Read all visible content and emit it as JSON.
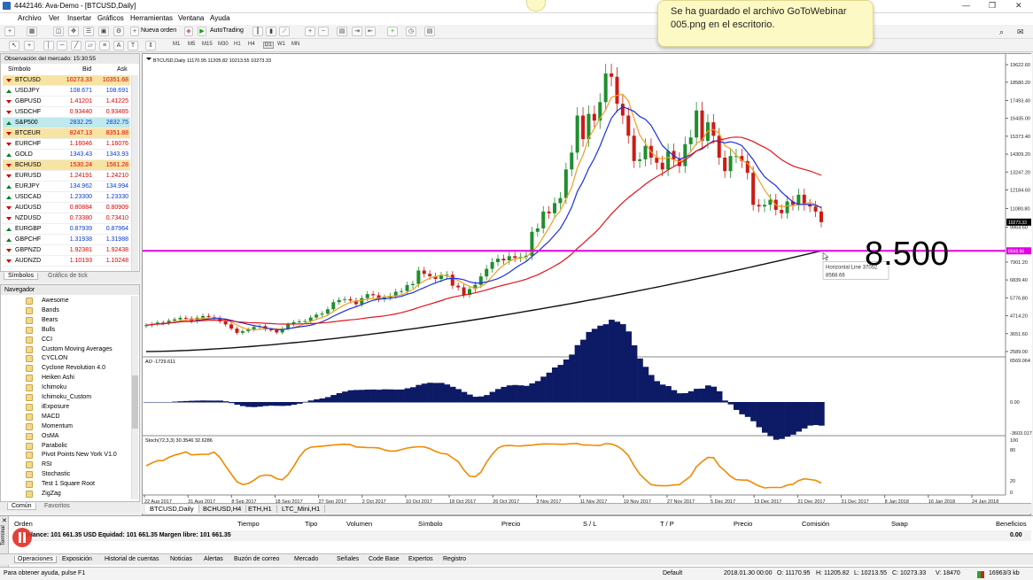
{
  "window": {
    "title": "4442146: Ava-Demo - [BTCUSD,Daily]",
    "controls": [
      "—",
      "❐",
      "✕"
    ]
  },
  "menu": [
    "Archivo",
    "Ver",
    "Insertar",
    "Gráficos",
    "Herramientas",
    "Ventana",
    "Ayuda"
  ],
  "toolbar": {
    "new_order": "Nueva orden",
    "autotrading": "AutoTrading",
    "timeframes": [
      "M1",
      "M5",
      "M15",
      "M30",
      "H1",
      "H4",
      "D1",
      "W1",
      "MN"
    ]
  },
  "notification": {
    "text": "Se ha guardado el archivo GoToWebinar 005.png en el escritorio."
  },
  "market_watch": {
    "header": "Observación del mercado: 15:30:55",
    "columns": [
      "Símbolo",
      "Bid",
      "Ask"
    ],
    "rows": [
      {
        "symbol": "BTCUSD",
        "bid": "10273.33",
        "ask": "10351.68",
        "dir": "dn",
        "hl": "#f7e3a2"
      },
      {
        "symbol": "USDJPY",
        "bid": "108.671",
        "ask": "108.691",
        "dir": "up",
        "hl": ""
      },
      {
        "symbol": "GBPUSD",
        "bid": "1.41201",
        "ask": "1.41225",
        "dir": "dn",
        "hl": ""
      },
      {
        "symbol": "USDCHF",
        "bid": "0.93440",
        "ask": "0.93465",
        "dir": "dn",
        "hl": ""
      },
      {
        "symbol": "S&P500",
        "bid": "2832.25",
        "ask": "2832.75",
        "dir": "up",
        "hl": "#bfe9ec"
      },
      {
        "symbol": "BTCEUR",
        "bid": "8247.13",
        "ask": "8351.88",
        "dir": "dn",
        "hl": "#f7e3a2"
      },
      {
        "symbol": "EURCHF",
        "bid": "1.16046",
        "ask": "1.16076",
        "dir": "dn",
        "hl": ""
      },
      {
        "symbol": "GOLD",
        "bid": "1343.43",
        "ask": "1343.93",
        "dir": "up",
        "hl": ""
      },
      {
        "symbol": "BCHUSD",
        "bid": "1530.24",
        "ask": "1561.28",
        "dir": "dn",
        "hl": "#f7e3a2"
      },
      {
        "symbol": "EURUSD",
        "bid": "1.24191",
        "ask": "1.24210",
        "dir": "dn",
        "hl": ""
      },
      {
        "symbol": "EURJPY",
        "bid": "134.962",
        "ask": "134.994",
        "dir": "up",
        "hl": ""
      },
      {
        "symbol": "USDCAD",
        "bid": "1.23300",
        "ask": "1.23330",
        "dir": "up",
        "hl": ""
      },
      {
        "symbol": "AUDUSD",
        "bid": "0.80884",
        "ask": "0.80909",
        "dir": "dn",
        "hl": ""
      },
      {
        "symbol": "NZDUSD",
        "bid": "0.73380",
        "ask": "0.73410",
        "dir": "dn",
        "hl": ""
      },
      {
        "symbol": "EURGBP",
        "bid": "0.87939",
        "ask": "0.87964",
        "dir": "up",
        "hl": ""
      },
      {
        "symbol": "GBPCHF",
        "bid": "1.31938",
        "ask": "1.31988",
        "dir": "up",
        "hl": ""
      },
      {
        "symbol": "GBPNZD",
        "bid": "1.92381",
        "ask": "1.92438",
        "dir": "dn",
        "hl": ""
      },
      {
        "symbol": "AUDNZD",
        "bid": "1.10193",
        "ask": "1.10248",
        "dir": "dn",
        "hl": ""
      }
    ],
    "tabs": [
      "Símbolos",
      "Gráfico de tick"
    ]
  },
  "navigator": {
    "header": "Navegador",
    "items": [
      "Awesome",
      "Bands",
      "Bears",
      "Bulls",
      "CCI",
      "Custom Moving Averages",
      "CYCLON",
      "Cyclone Revolution 4.0",
      "Heiken Ashi",
      "Ichimoku",
      "Ichimoku_Custom",
      "iExposure",
      "MACD",
      "Momentum",
      "OsMA",
      "Parabolic",
      "Pivot Points New York V1.0",
      "RSI",
      "Stochastic",
      "Test 1 Square Root",
      "ZigZag"
    ],
    "tabs": [
      "Común",
      "Favoritos"
    ]
  },
  "chart": {
    "info": "BTCUSD,Daily  11170.95 11205.82 10213.55 10273.33",
    "ao_label": "AO -1729.611",
    "stoch_label": "Stoch(72,3,3) 30.3546 32.6286",
    "hline_label": "Horizontal Line 37052",
    "hline_value": "8568.66",
    "big_label": "8.500",
    "tabs": [
      "BTCUSD,Daily",
      "BCHUSD,H4",
      "ETH,H1",
      "LTC_Mini,H1"
    ],
    "colors": {
      "bull": "#1e8f2e",
      "bear": "#cc1b14",
      "ma_fast": "#f0a020",
      "ma_mid": "#1c2fe0",
      "ma_slow": "#e2141c",
      "ma_long": "#111111",
      "hline": "#e000e0",
      "ao": "#0d1a66",
      "stoch": "#f08a00"
    }
  },
  "chart_data": {
    "type": "candlestick",
    "title": "BTCUSD,Daily",
    "x_ticks": [
      "22 Aug 2017",
      "31 Aug 2017",
      "8 Sep 2017",
      "18 Sep 2017",
      "27 Sep 2017",
      "2 Oct 2017",
      "10 Oct 2017",
      "18 Oct 2017",
      "26 Oct 2017",
      "3 Nov 2017",
      "11 Nov 2017",
      "19 Nov 2017",
      "27 Nov 2017",
      "5 Dec 2017",
      "13 Dec 2017",
      "21 Dec 2017",
      "31 Dec 2017",
      "8 Jan 2018",
      "16 Jan 2018",
      "24 Jan 2018"
    ],
    "y_ticks": [
      "19622.60",
      "18580.20",
      "17493.40",
      "16435.00",
      "15373.40",
      "14309.20",
      "13247.20",
      "12184.60",
      "11080.80",
      "9964.60",
      "7901.20",
      "6839.40",
      "5776.80",
      "4714.20",
      "3651.60",
      "2589.00"
    ],
    "current_price": "10273.33",
    "hline_price": "8568.66",
    "y_range": [
      2589.0,
      19622.6
    ],
    "closes": [
      4150,
      4220,
      4310,
      4280,
      4420,
      4500,
      4590,
      4550,
      4390,
      4600,
      4700,
      4640,
      4580,
      4380,
      4200,
      3950,
      3700,
      3800,
      3900,
      4050,
      4100,
      3900,
      3870,
      3720,
      3950,
      4200,
      4330,
      4380,
      4400,
      4610,
      4780,
      4840,
      5100,
      5520,
      5650,
      5700,
      5620,
      5400,
      5760,
      6000,
      5930,
      5690,
      5800,
      5900,
      6140,
      6180,
      6530,
      6600,
      7400,
      7200,
      7060,
      6900,
      7100,
      7150,
      6500,
      6400,
      5950,
      6300,
      6550,
      7050,
      7500,
      7900,
      8100,
      8000,
      8250,
      8150,
      8200,
      8280,
      9700,
      9900,
      10900,
      10800,
      11400,
      11700,
      13400,
      14400,
      16600,
      15200,
      16700,
      16300,
      17400,
      19100,
      18900,
      17300,
      16600,
      15400,
      13900,
      14000,
      14800,
      14100,
      13800,
      13400,
      14500,
      14000,
      13600,
      14900,
      15300,
      16900,
      15100,
      16200,
      15400,
      14100,
      13300,
      14200,
      14200,
      13900,
      13200,
      11300,
      11200,
      11300,
      11600,
      11000,
      10800,
      11500,
      11300,
      11900,
      11300,
      11200,
      10900,
      10273
    ],
    "ma_long_range": [
      2589,
      8568
    ],
    "ao": {
      "label": "AO",
      "value": -1729.611,
      "y_ticks": [
        "6569.064",
        "0.00",
        "-3603.017"
      ]
    },
    "stochastic": {
      "label": "Stoch(72,3,3)",
      "main": 30.3546,
      "signal": 32.6286,
      "y_ticks": [
        "100",
        "80",
        "20",
        "0"
      ]
    }
  },
  "terminal": {
    "columns": [
      "Orden",
      "Tiempo",
      "Tipo",
      "Volumen",
      "Símbolo",
      "Precio",
      "S / L",
      "T / P",
      "Precio",
      "Comisión",
      "Swap",
      "Beneficios"
    ],
    "balance": "Balance: 101 661.35 USD  Equidad: 101 661.35  Margen libre: 101 661.35",
    "balance_value": "0.00",
    "tabs": [
      "Operaciones",
      "Exposición",
      "Historial de cuentas",
      "Noticias",
      "Alertas",
      "Buzón de correo",
      "Mercado",
      "Señales",
      "Code Base",
      "Expertos",
      "Registro"
    ],
    "side_label": "Terminal"
  },
  "status": {
    "help": "Para obtener ayuda, pulse F1",
    "profile": "Default",
    "time": "2018.01.30 00:00",
    "o": "O: 11170.95",
    "h": "H: 11205.82",
    "l": "L: 10213.55",
    "c": "C: 10273.33",
    "v": "V: 18470",
    "traffic": "16963/3 kb"
  }
}
